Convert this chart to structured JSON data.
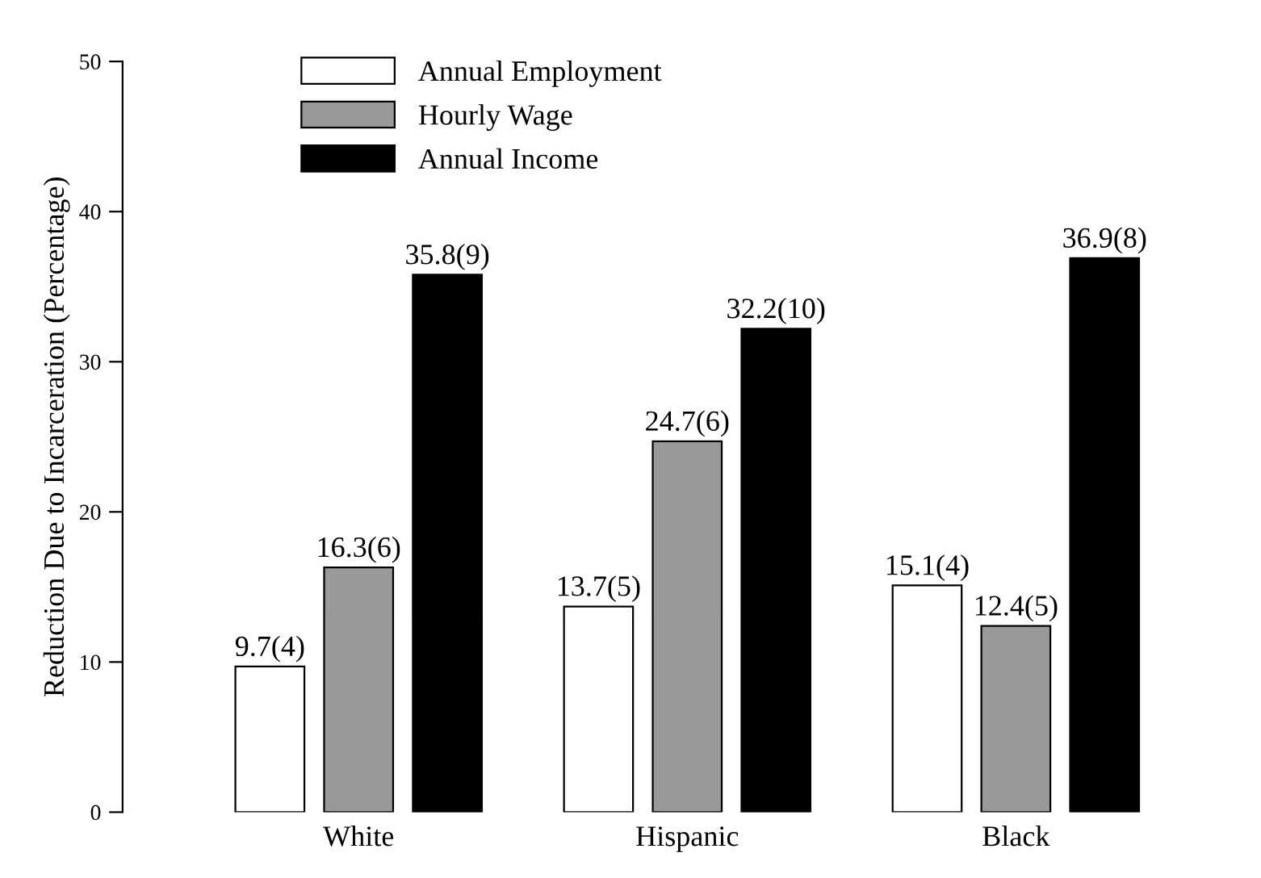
{
  "chart_data": {
    "type": "bar",
    "ylabel": "Reduction Due to Incarceration (Percentage)",
    "categories": [
      "White",
      "Hispanic",
      "Black"
    ],
    "series": [
      {
        "name": "Annual Employment",
        "color": "#ffffff",
        "values": [
          9.7,
          13.7,
          15.1
        ],
        "value_labels": [
          "9.7(4)",
          "13.7(5)",
          "15.1(4)"
        ]
      },
      {
        "name": "Hourly Wage",
        "color": "#999999",
        "values": [
          16.3,
          24.7,
          12.4
        ],
        "value_labels": [
          "16.3(6)",
          "24.7(6)",
          "12.4(5)"
        ]
      },
      {
        "name": "Annual Income",
        "color": "#000000",
        "values": [
          35.8,
          32.2,
          36.9
        ],
        "value_labels": [
          "35.8(9)",
          "32.2(10)",
          "36.9(8)"
        ]
      }
    ],
    "ylim": [
      0,
      50
    ],
    "yticks": [
      0,
      10,
      20,
      30,
      40,
      50
    ],
    "legend": "top left",
    "grid": false
  }
}
